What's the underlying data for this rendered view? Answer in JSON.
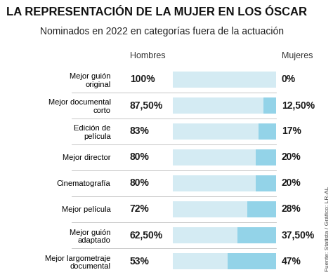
{
  "chart_data": {
    "type": "bar",
    "title": "LA REPRESENTACIÓN DE LA MUJER EN LOS ÓSCAR",
    "subtitle": "Nominados en 2022 en categorías fuera de la actuación",
    "annotations": [
      "Fuente: Statista / Gráfico: LR-AL"
    ],
    "orientation": "horizontal",
    "stacked": true,
    "data_labels": true,
    "tick_labels": "y",
    "categories": [
      "Mejor guión original",
      "Mejor documental corto",
      "Edición de película",
      "Mejor director",
      "Cinematografía",
      "Mejor película",
      "Mejor guión adaptado",
      "Mejor largometraje documental"
    ],
    "series": [
      {
        "name": "Hombres",
        "color": "#d4ebf3",
        "values": [
          100,
          87.5,
          83,
          80,
          80,
          72,
          62.5,
          53
        ],
        "value_labels": [
          "100%",
          "87,50%",
          "83%",
          "80%",
          "80%",
          "72%",
          "62,50%",
          "53%"
        ]
      },
      {
        "name": "Mujeres",
        "color": "#93d3e8",
        "values": [
          0,
          12.5,
          17,
          20,
          20,
          28,
          37.5,
          47
        ],
        "value_labels": [
          "0%",
          "12,50%",
          "17%",
          "20%",
          "20%",
          "28%",
          "37,50%",
          "47%"
        ]
      }
    ],
    "xlim": [
      0,
      100
    ]
  }
}
